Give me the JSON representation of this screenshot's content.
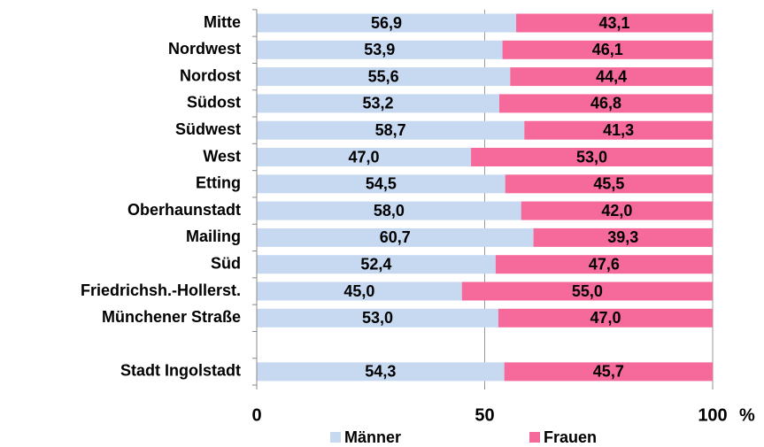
{
  "chart_data": {
    "type": "stacked_barh",
    "categories": [
      "Mitte",
      "Nordwest",
      "Nordost",
      "Südost",
      "Südwest",
      "West",
      "Etting",
      "Oberhaunstadt",
      "Mailing",
      "Süd",
      "Friedrichsh.-Hollerst.",
      "Münchener Straße",
      null,
      "Stadt Ingolstadt"
    ],
    "series": [
      {
        "name": "Männer",
        "color": "#c6d9f1",
        "values": [
          56.9,
          53.9,
          55.6,
          53.2,
          58.7,
          47.0,
          54.5,
          58.0,
          60.7,
          52.4,
          45.0,
          53.0,
          null,
          54.3
        ],
        "value_labels": [
          "56,9",
          "53,9",
          "55,6",
          "53,2",
          "58,7",
          "47,0",
          "54,5",
          "58,0",
          "60,7",
          "52,4",
          "45,0",
          "53,0",
          null,
          "54,3"
        ]
      },
      {
        "name": "Frauen",
        "color": "#f66a9b",
        "values": [
          43.1,
          46.1,
          44.4,
          46.8,
          41.3,
          53.0,
          45.5,
          42.0,
          39.3,
          47.6,
          55.0,
          47.0,
          null,
          45.7
        ],
        "value_labels": [
          "43,1",
          "46,1",
          "44,4",
          "46,8",
          "41,3",
          "53,0",
          "45,5",
          "42,0",
          "39,3",
          "47,6",
          "55,0",
          "47,0",
          null,
          "45,7"
        ]
      }
    ],
    "xlim": [
      0,
      100
    ],
    "xticks": [
      0,
      50,
      100
    ],
    "xlabel": "%",
    "grid": true,
    "legend": "bottom"
  }
}
